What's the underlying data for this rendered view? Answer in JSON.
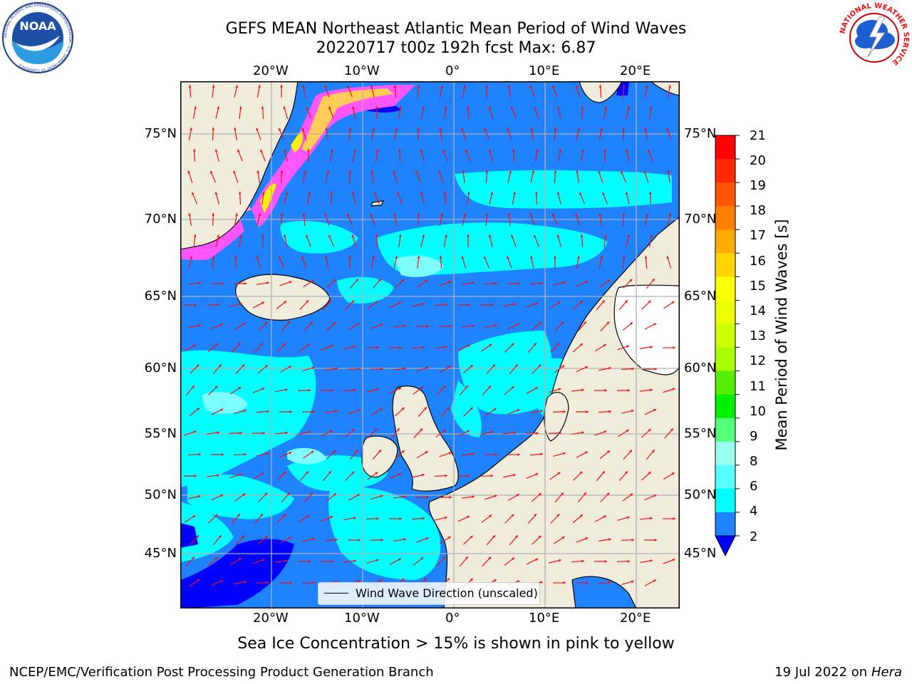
{
  "header": {
    "title_line1": "GEFS MEAN Northeast Atlantic Mean Period of Wind Waves",
    "title_line2": "20220717 t00z 192h fcst   Max: 6.87"
  },
  "logos": {
    "noaa": "NOAA",
    "noaa_ring": "NATIONAL OCEANIC AND ATMOSPHERIC ADMINISTRATION · U.S. DEPARTMENT OF COMMERCE",
    "nws_ring": "NATIONAL WEATHER SERVICE"
  },
  "map": {
    "lon_labels": [
      "20°W",
      "10°W",
      "0°",
      "10°E",
      "20°E"
    ],
    "lat_labels": [
      "75°N",
      "70°N",
      "65°N",
      "60°N",
      "55°N",
      "50°N",
      "45°N"
    ],
    "legend_label": "Wind Wave Direction (unscaled)",
    "colors": {
      "land": "#efecdc",
      "ocean_base": "#1f82ff",
      "cyan": "#00ffff",
      "light_cyan": "#7effff",
      "dark_blue": "#0000ff",
      "arrows": "#ee1111",
      "gridlines": "#b0b0b0",
      "sea_ice": [
        "#ff55ff",
        "#ff99cc",
        "#ffcc55",
        "#ffee00"
      ]
    }
  },
  "colorbar": {
    "label": "Mean Period of Wind Waves [s]",
    "ticks": [
      "21",
      "20",
      "19",
      "18",
      "17",
      "16",
      "15",
      "14",
      "13",
      "12",
      "11",
      "10",
      "9",
      "8",
      "6",
      "4",
      "2"
    ],
    "colors_top_to_bottom": [
      "#ff0000",
      "#ff2a00",
      "#ff5500",
      "#ff8000",
      "#ffaa00",
      "#ffd500",
      "#ffff00",
      "#eeff00",
      "#ccff00",
      "#aaff00",
      "#55ee00",
      "#00ee00",
      "#55ff77",
      "#99ffee",
      "#55ffff",
      "#00ffff",
      "#1f82ff"
    ],
    "under_color": "#0000ff"
  },
  "footer": {
    "note": "Sea Ice Concentration > 15% is shown in pink to yellow",
    "left": "NCEP/EMC/Verification Post Processing Product Generation Branch",
    "date": "19 Jul 2022 on ",
    "machine": "Hera"
  }
}
